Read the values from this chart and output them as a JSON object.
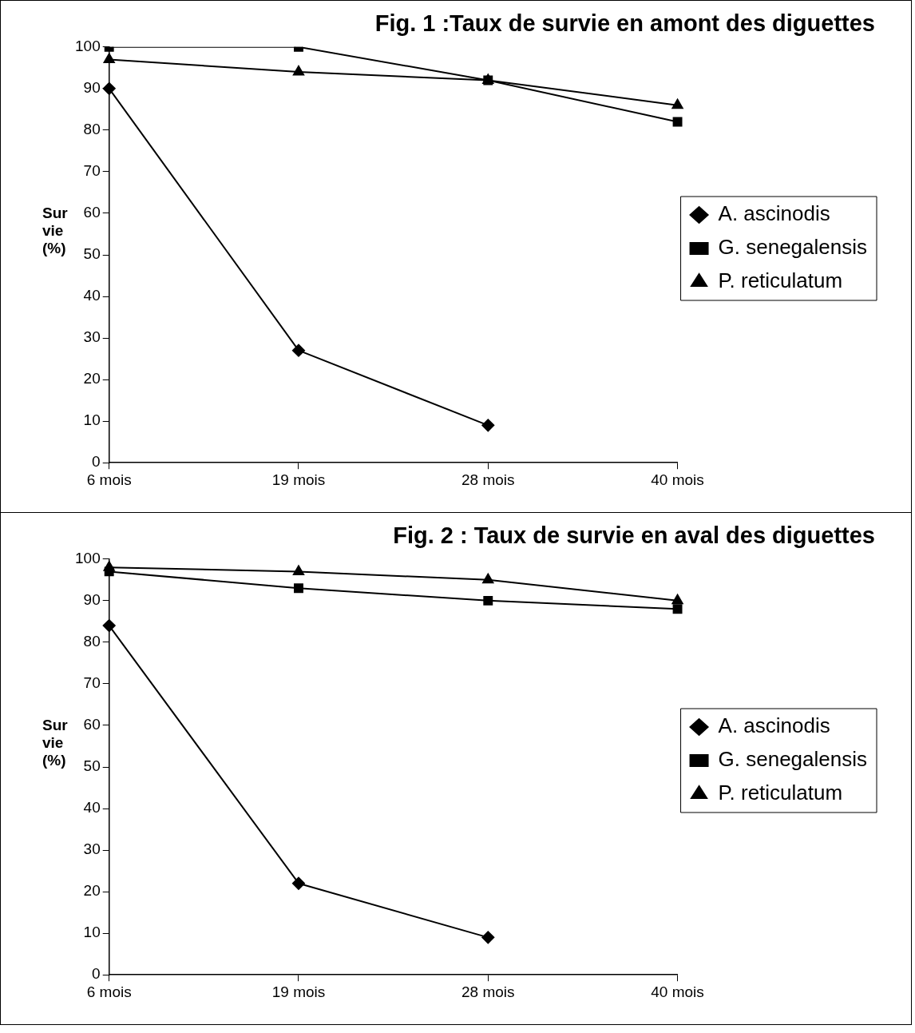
{
  "chart_data": [
    {
      "type": "line",
      "title": "Fig. 1 :Taux de survie en amont des diguettes",
      "ylabel": "Sur vie (%)",
      "categories": [
        "6 mois",
        "19 mois",
        "28 mois",
        "40 mois"
      ],
      "ylim": [
        0,
        100
      ],
      "yticks": [
        0,
        10,
        20,
        30,
        40,
        50,
        60,
        70,
        80,
        90,
        100
      ],
      "grid": false,
      "legend": "right",
      "series": [
        {
          "name": "A. ascinodis",
          "color": "#000000",
          "marker": "diamond",
          "values": [
            90,
            27,
            9,
            null
          ]
        },
        {
          "name": "G. senegalensis",
          "color": "#000000",
          "marker": "square",
          "values": [
            100,
            100,
            92,
            82
          ]
        },
        {
          "name": "P. reticulatum",
          "color": "#000000",
          "marker": "triangle",
          "values": [
            97,
            94,
            92,
            86
          ]
        }
      ]
    },
    {
      "type": "line",
      "title": "Fig. 2 : Taux de survie en aval des diguettes",
      "ylabel": "Sur vie (%)",
      "categories": [
        "6 mois",
        "19 mois",
        "28 mois",
        "40 mois"
      ],
      "ylim": [
        0,
        100
      ],
      "yticks": [
        0,
        10,
        20,
        30,
        40,
        50,
        60,
        70,
        80,
        90,
        100
      ],
      "grid": false,
      "legend": "right",
      "series": [
        {
          "name": "A. ascinodis",
          "color": "#000000",
          "marker": "diamond",
          "values": [
            84,
            22,
            9,
            null
          ]
        },
        {
          "name": "G. senegalensis",
          "color": "#000000",
          "marker": "square",
          "values": [
            97,
            93,
            90,
            88
          ]
        },
        {
          "name": "P. reticulatum",
          "color": "#000000",
          "marker": "triangle",
          "values": [
            98,
            97,
            95,
            90
          ]
        }
      ]
    }
  ]
}
